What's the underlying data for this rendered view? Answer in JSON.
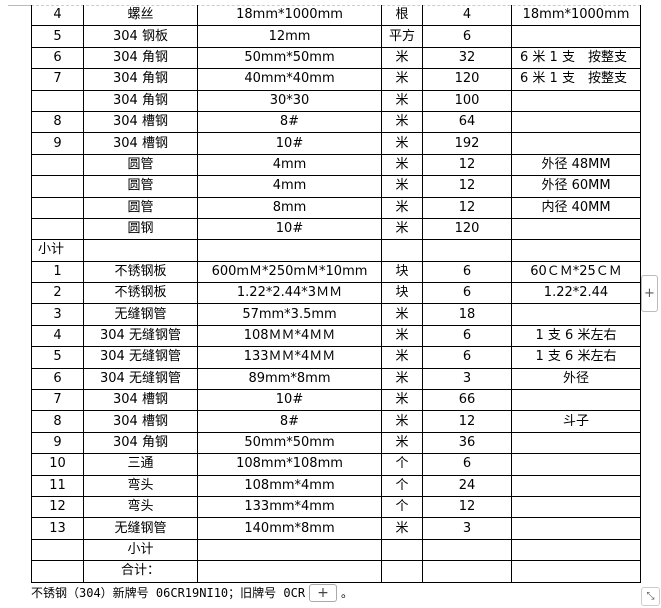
{
  "rows": [
    [
      "4",
      "螺丝",
      "18mm*1000mm",
      "根",
      "4",
      "18mm*1000mm"
    ],
    [
      "5",
      "304 钢板",
      "12mm",
      "平方",
      "6",
      ""
    ],
    [
      "6",
      "304 角钢",
      "50mm*50mm",
      "米",
      "32",
      "6 米 1 支　按整支"
    ],
    [
      "7",
      "304 角钢",
      "40mm*40mm",
      "米",
      "120",
      "6 米 1 支　按整支"
    ],
    [
      "",
      "304 角钢",
      "30*30",
      "米",
      "100",
      ""
    ],
    [
      "8",
      "304 槽钢",
      "8#",
      "米",
      "64",
      ""
    ],
    [
      "9",
      "304 槽钢",
      "10#",
      "米",
      "192",
      ""
    ],
    [
      "",
      "圆管",
      "4mm",
      "米",
      "12",
      "外径 48MM"
    ],
    [
      "",
      "圆管",
      "4mm",
      "米",
      "12",
      "外径 60MM"
    ],
    [
      "",
      "圆管",
      "8mm",
      "米",
      "12",
      "内径 40MM"
    ],
    [
      "",
      "圆钢",
      "10#",
      "米",
      "120",
      ""
    ],
    [
      "小计",
      "",
      "",
      "",
      "",
      ""
    ],
    [
      "1",
      "不锈钢板",
      "600mＭ*250mＭ*10mm",
      "块",
      "6",
      "60ＣＭ*25ＣＭ"
    ],
    [
      "2",
      "不锈钢板",
      "1.22*2.44*3ＭＭ",
      "块",
      "6",
      "1.22*2.44"
    ],
    [
      "3",
      "无缝钢管",
      "57mm*3.5mm",
      "米",
      "18",
      ""
    ],
    [
      "4",
      "304 无缝钢管",
      "108ＭＭ*4ＭＭ",
      "米",
      "6",
      "1 支 6 米左右"
    ],
    [
      "5",
      "304 无缝钢管",
      "133ＭＭ*4ＭＭ",
      "米",
      "6",
      "1 支 6 米左右"
    ],
    [
      "6",
      "304 无缝钢管",
      "89mm*8mm",
      "米",
      "3",
      "外径"
    ],
    [
      "7",
      "304 槽钢",
      "10#",
      "米",
      "66",
      ""
    ],
    [
      "8",
      "304 槽钢",
      "8#",
      "米",
      "12",
      "斗子"
    ],
    [
      "9",
      "304 角钢",
      "50mm*50mm",
      "米",
      "36",
      ""
    ],
    [
      "10",
      "三通",
      "108mm*108mm",
      "个",
      "6",
      ""
    ],
    [
      "11",
      "弯头",
      "108mm*4mm",
      "个",
      "24",
      ""
    ],
    [
      "12",
      "弯头",
      "133mm*4mm",
      "个",
      "12",
      ""
    ],
    [
      "13",
      "无缝钢管",
      "140mm*8mm",
      "米",
      "3",
      ""
    ],
    [
      "",
      "小计",
      "",
      "",
      "",
      ""
    ],
    [
      "",
      "合计：",
      "",
      "",
      "",
      ""
    ]
  ],
  "note": "不锈钢（304）新牌号 06CR19NI10；旧牌号 0CR",
  "note_end": "。",
  "plus_label": "+",
  "side_plus_label": "+",
  "resize_icon": "resize-icon"
}
